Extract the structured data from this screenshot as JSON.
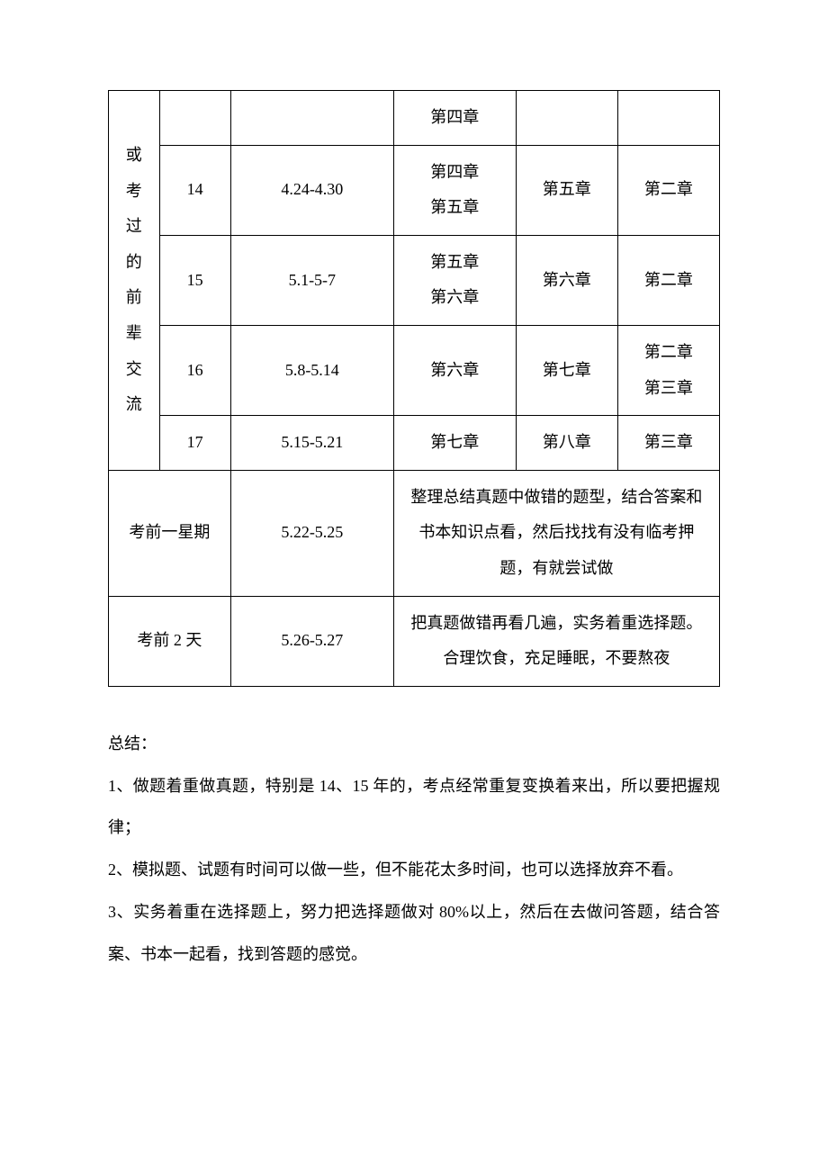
{
  "table": {
    "left_header": "或考过的前辈交流",
    "rows": [
      {
        "num": "",
        "date": "",
        "colA": "第四章",
        "colB": "",
        "colC": ""
      },
      {
        "num": "14",
        "date": "4.24-4.30",
        "colA": "第四章\n第五章",
        "colB": "第五章",
        "colC": "第二章"
      },
      {
        "num": "15",
        "date": "5.1-5-7",
        "colA": "第五章\n第六章",
        "colB": "第六章",
        "colC": "第二章"
      },
      {
        "num": "16",
        "date": "5.8-5.14",
        "colA": "第六章",
        "colB": "第七章",
        "colC": "第二章\n第三章"
      },
      {
        "num": "17",
        "date": "5.15-5.21",
        "colA": "第七章",
        "colB": "第八章",
        "colC": "第三章"
      }
    ],
    "footer_rows": [
      {
        "label": "考前一星期",
        "date": "5.22-5.25",
        "note": "整理总结真题中做错的题型，结合答案和书本知识点看，然后找找有没有临考押题，有就尝试做"
      },
      {
        "label": "考前 2 天",
        "date": "5.26-5.27",
        "note": "把真题做错再看几遍，实务着重选择题。合理饮食，充足睡眠，不要熬夜"
      }
    ]
  },
  "summary": {
    "title": "总结：",
    "items": [
      "1、做题着重做真题，特别是 14、15 年的，考点经常重复变换着来出，所以要把握规律；",
      "2、模拟题、试题有时间可以做一些，但不能花太多时间，也可以选择放弃不看。",
      "3、实务着重在选择题上，努力把选择题做对 80%以上，然后在去做问答题，结合答案、书本一起看，找到答题的感觉。"
    ]
  }
}
